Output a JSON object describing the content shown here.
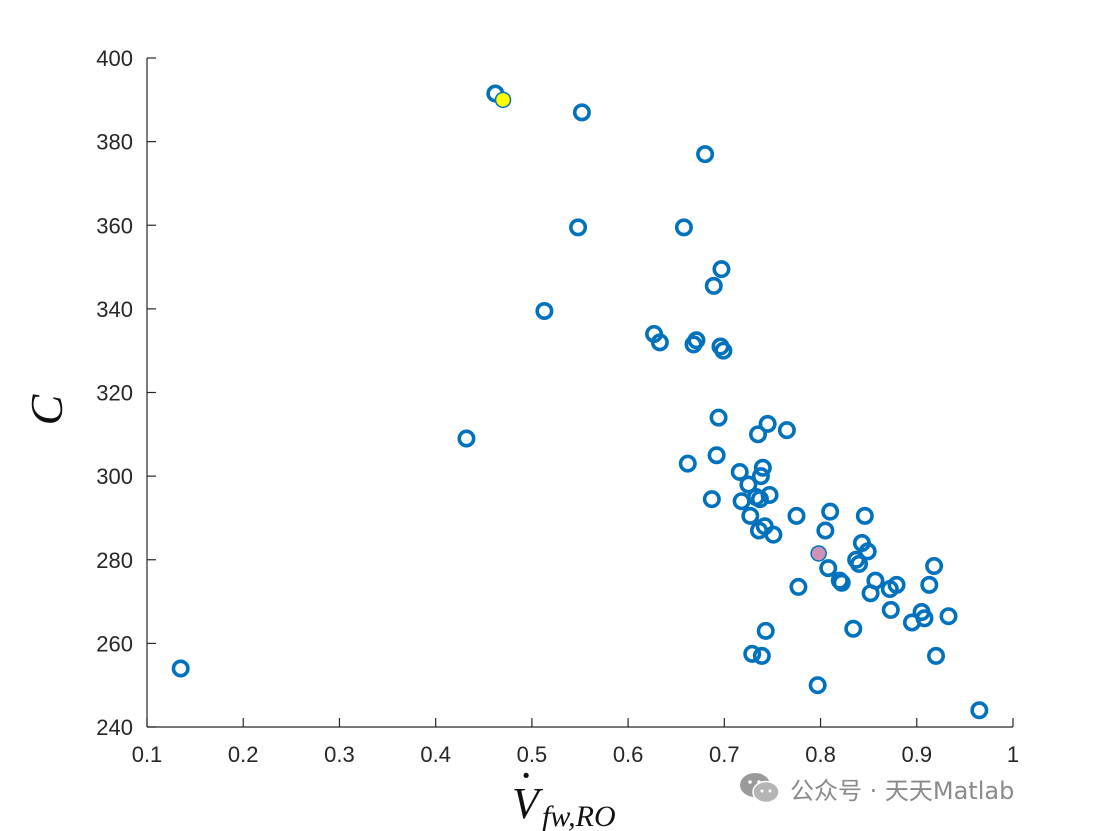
{
  "chart_data": {
    "type": "scatter",
    "title": "",
    "xlabel": {
      "main": "V",
      "dot": "·",
      "subscript": "fw,RO"
    },
    "ylabel": "C",
    "xlim": [
      0.1,
      1
    ],
    "ylim": [
      240,
      400
    ],
    "xticks": [
      "0.1",
      "0.2",
      "0.3",
      "0.4",
      "0.5",
      "0.6",
      "0.7",
      "0.8",
      "0.9",
      "1"
    ],
    "yticks": [
      "240",
      "260",
      "280",
      "300",
      "320",
      "340",
      "360",
      "380",
      "400"
    ],
    "grid": false,
    "legend": "none",
    "colors": {
      "marker": "#0072BD",
      "highlight_yellow": "#FFFF00",
      "highlight_pink": "#D090B8"
    },
    "series": [
      {
        "marker": "open-circle",
        "points": [
          [
            0.135,
            254
          ],
          [
            0.432,
            309
          ],
          [
            0.462,
            391.5
          ],
          [
            0.513,
            339.5
          ],
          [
            0.548,
            359.5
          ],
          [
            0.552,
            387
          ],
          [
            0.627,
            334
          ],
          [
            0.633,
            332
          ],
          [
            0.658,
            359.5
          ],
          [
            0.662,
            303
          ],
          [
            0.668,
            331.5
          ],
          [
            0.671,
            332.5
          ],
          [
            0.68,
            377
          ],
          [
            0.687,
            294.5
          ],
          [
            0.689,
            345.5
          ],
          [
            0.692,
            305
          ],
          [
            0.694,
            314
          ],
          [
            0.696,
            331
          ],
          [
            0.697,
            349.5
          ],
          [
            0.699,
            330
          ],
          [
            0.716,
            301
          ],
          [
            0.718,
            294
          ],
          [
            0.725,
            298
          ],
          [
            0.727,
            290.5
          ],
          [
            0.729,
            257.5
          ],
          [
            0.733,
            295
          ],
          [
            0.735,
            310
          ],
          [
            0.736,
            287
          ],
          [
            0.737,
            294.5
          ],
          [
            0.738,
            300
          ],
          [
            0.739,
            257
          ],
          [
            0.74,
            302
          ],
          [
            0.742,
            288
          ],
          [
            0.743,
            263
          ],
          [
            0.745,
            312.5
          ],
          [
            0.747,
            295.5
          ],
          [
            0.751,
            286
          ],
          [
            0.765,
            311
          ],
          [
            0.775,
            290.5
          ],
          [
            0.777,
            273.5
          ],
          [
            0.797,
            250
          ],
          [
            0.805,
            287
          ],
          [
            0.808,
            278
          ],
          [
            0.81,
            291.5
          ],
          [
            0.82,
            275
          ],
          [
            0.822,
            274.5
          ],
          [
            0.834,
            263.5
          ],
          [
            0.837,
            280
          ],
          [
            0.84,
            279
          ],
          [
            0.843,
            284
          ],
          [
            0.846,
            290.5
          ],
          [
            0.849,
            282
          ],
          [
            0.852,
            272
          ],
          [
            0.857,
            275
          ],
          [
            0.872,
            273
          ],
          [
            0.873,
            268
          ],
          [
            0.879,
            274
          ],
          [
            0.895,
            265
          ],
          [
            0.905,
            267.5
          ],
          [
            0.908,
            266
          ],
          [
            0.913,
            274
          ],
          [
            0.918,
            278.5
          ],
          [
            0.92,
            257
          ],
          [
            0.933,
            266.5
          ],
          [
            0.965,
            244
          ]
        ]
      },
      {
        "marker": "filled-circle",
        "color": "#FFFF00",
        "points": [
          [
            0.47,
            390
          ]
        ]
      },
      {
        "marker": "filled-circle",
        "color": "#D090B8",
        "points": [
          [
            0.798,
            281.5
          ]
        ]
      }
    ]
  },
  "watermark": {
    "text": "公众号 · 天天Matlab",
    "icon": "wechat-icon"
  }
}
